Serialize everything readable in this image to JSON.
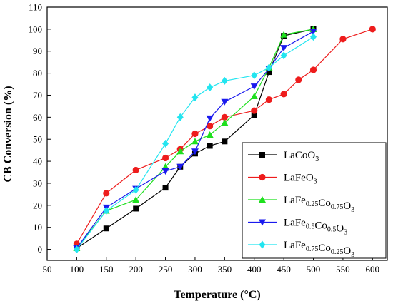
{
  "chart_data": {
    "type": "line",
    "xlabel": "Temperature (°C)",
    "ylabel": "CB Conversion (%)",
    "xlim": [
      50,
      625
    ],
    "ylim": [
      -5,
      110
    ],
    "xticks": [
      50,
      100,
      150,
      200,
      250,
      300,
      350,
      400,
      450,
      500,
      550,
      600
    ],
    "yticks": [
      0,
      10,
      20,
      30,
      40,
      50,
      60,
      70,
      80,
      90,
      100,
      110
    ],
    "grid": false,
    "legend_position": "bottom-right",
    "series": [
      {
        "name": "LaCoO3",
        "color": "#000000",
        "marker": "square",
        "x": [
          100,
          150,
          200,
          250,
          275,
          300,
          325,
          350,
          400,
          425,
          450,
          500
        ],
        "y": [
          0.5,
          9.5,
          18.5,
          28,
          37.5,
          43.5,
          47,
          49,
          61,
          80.5,
          97,
          100
        ]
      },
      {
        "name": "LaFeO3",
        "color": "#ee1c1c",
        "marker": "circle",
        "x": [
          100,
          150,
          200,
          250,
          275,
          300,
          325,
          350,
          400,
          425,
          450,
          475,
          500,
          550,
          600
        ],
        "y": [
          2.5,
          25.5,
          36,
          41.5,
          45.5,
          52.5,
          56,
          60,
          63,
          68,
          70.5,
          77,
          81.5,
          95.5,
          100
        ]
      },
      {
        "name": "LaFe0.25Co0.75O3",
        "color": "#1ee01e",
        "marker": "triangle-up",
        "x": [
          100,
          150,
          200,
          250,
          275,
          300,
          325,
          350,
          400,
          425,
          450,
          500
        ],
        "y": [
          0.5,
          17.5,
          22.5,
          37.5,
          44.5,
          49,
          52,
          57.5,
          69.5,
          82.5,
          97.5,
          100
        ]
      },
      {
        "name": "LaFe0.5Co0.5O3",
        "color": "#1a1aee",
        "marker": "triangle-down",
        "x": [
          100,
          150,
          200,
          250,
          275,
          300,
          325,
          350,
          400,
          425,
          450,
          500
        ],
        "y": [
          0.5,
          19,
          27.5,
          35.5,
          37.5,
          44.5,
          59.5,
          67,
          74,
          82,
          91.5,
          99
        ]
      },
      {
        "name": "LaFe0.75Co0.25O3",
        "color": "#22e5f0",
        "marker": "diamond",
        "x": [
          100,
          150,
          200,
          250,
          275,
          300,
          325,
          350,
          400,
          425,
          450,
          500
        ],
        "y": [
          0,
          17.5,
          27,
          48,
          60,
          69,
          73.5,
          76.5,
          79,
          82.5,
          88,
          96.5
        ]
      }
    ],
    "legend": [
      {
        "parts": [
          [
            "La",
            ""
          ],
          [
            "Co",
            ""
          ],
          [
            "O",
            ""
          ],
          [
            "3",
            "sub"
          ]
        ]
      },
      {
        "parts": [
          [
            "La",
            ""
          ],
          [
            "Fe",
            ""
          ],
          [
            "O",
            ""
          ],
          [
            "3",
            "sub"
          ]
        ]
      },
      {
        "parts": [
          [
            "LaFe",
            ""
          ],
          [
            "0.25",
            "sub"
          ],
          [
            "Co",
            ""
          ],
          [
            "0.75",
            "sub"
          ],
          [
            "O",
            ""
          ],
          [
            "3",
            "sub"
          ]
        ]
      },
      {
        "parts": [
          [
            "LaFe",
            ""
          ],
          [
            "0.5",
            "sub"
          ],
          [
            "Co",
            ""
          ],
          [
            "0.5",
            "sub"
          ],
          [
            "O",
            ""
          ],
          [
            "3",
            "sub"
          ]
        ]
      },
      {
        "parts": [
          [
            "LaFe",
            ""
          ],
          [
            "0.75",
            "sub"
          ],
          [
            "Co",
            ""
          ],
          [
            "0.25",
            "sub"
          ],
          [
            "O",
            ""
          ],
          [
            "3",
            "sub"
          ]
        ]
      }
    ]
  }
}
